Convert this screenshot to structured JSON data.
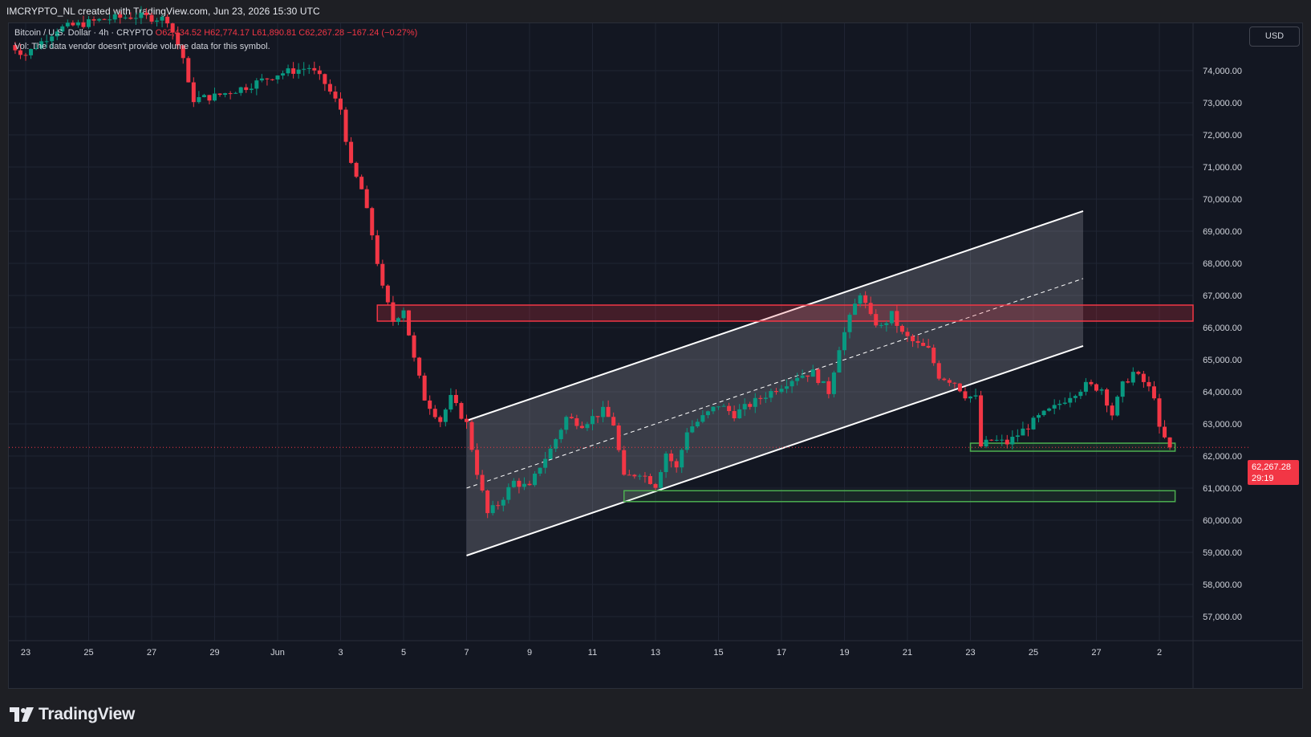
{
  "header": {
    "credit": "IMCRYPTO_NL created with TradingView.com, Jun 23, 2026 15:30 UTC"
  },
  "legend": {
    "symbol": "Bitcoin / U.S. Dollar · 4h · CRYPTO",
    "open": "O62,434.52",
    "high": "H62,774.17",
    "low": "L61,890.81",
    "close": "C62,267.28",
    "change": "−167.24 (−0.27%)",
    "vol_note": "Vol: The data vendor doesn't provide volume data for this symbol."
  },
  "currency_button": "USD",
  "last_price": {
    "value": "62,267.28",
    "countdown": "29:19",
    "price": 62267.28
  },
  "branding": {
    "logo_text": "TradingView"
  },
  "colors": {
    "up": "#089981",
    "down": "#f23645",
    "background": "#131722",
    "grid": "#1f2433",
    "zone_red": "#f23645",
    "zone_green": "#4caf50",
    "channel": "#ffffff"
  },
  "chart_data": {
    "type": "candlestick",
    "title": "Bitcoin / U.S. Dollar · 4h · CRYPTO",
    "x_ticks": [
      "23",
      "25",
      "27",
      "29",
      "Jun",
      "3",
      "5",
      "7",
      "9",
      "11",
      "13",
      "15",
      "17",
      "19",
      "21",
      "23",
      "25",
      "27",
      "2"
    ],
    "y_ticks": [
      57000,
      58000,
      59000,
      60000,
      61000,
      62000,
      63000,
      64000,
      65000,
      66000,
      67000,
      68000,
      69000,
      70000,
      71000,
      72000,
      73000,
      74000
    ],
    "y_tick_labels": [
      "57,000.00",
      "58,000.00",
      "59,000.00",
      "60,000.00",
      "61,000.00",
      "62,000.00",
      "63,000.00",
      "64,000.00",
      "65,000.00",
      "66,000.00",
      "67,000.00",
      "68,000.00",
      "69,000.00",
      "70,000.00",
      "71,000.00",
      "72,000.00",
      "73,000.00",
      "74,000.00"
    ],
    "ylim": [
      56400,
      75800
    ],
    "x_range_days": [
      "2026-05-22T12:00",
      "2026-06-28T12:00"
    ],
    "grid": true,
    "anchors": [
      [
        "2026-05-22T12:00",
        74800
      ],
      [
        "2026-05-23T00:00",
        74500
      ],
      [
        "2026-05-24T00:00",
        75300
      ],
      [
        "2026-05-25T12:00",
        75600
      ],
      [
        "2026-05-26T12:00",
        75700
      ],
      [
        "2026-05-27T12:00",
        75600
      ],
      [
        "2026-05-28T00:00",
        74400
      ],
      [
        "2026-05-28T06:00",
        73100
      ],
      [
        "2026-05-29T00:00",
        73200
      ],
      [
        "2026-05-30T00:00",
        73500
      ],
      [
        "2026-05-31T00:00",
        73900
      ],
      [
        "2026-06-01T00:00",
        74100
      ],
      [
        "2026-06-01T12:00",
        73600
      ],
      [
        "2026-06-02T00:00",
        72800
      ],
      [
        "2026-06-02T08:00",
        71000
      ],
      [
        "2026-06-02T16:00",
        70300
      ],
      [
        "2026-06-03T00:00",
        68900
      ],
      [
        "2026-06-03T08:00",
        67200
      ],
      [
        "2026-06-03T16:00",
        66200
      ],
      [
        "2026-06-04T00:00",
        66600
      ],
      [
        "2026-06-04T08:00",
        65000
      ],
      [
        "2026-06-04T16:00",
        63800
      ],
      [
        "2026-06-05T04:00",
        63100
      ],
      [
        "2026-06-05T12:00",
        63800
      ],
      [
        "2026-06-06T00:00",
        63000
      ],
      [
        "2026-06-06T08:00",
        61500
      ],
      [
        "2026-06-06T16:00",
        60200
      ],
      [
        "2026-06-07T00:00",
        60500
      ],
      [
        "2026-06-07T12:00",
        61200
      ],
      [
        "2026-06-08T00:00",
        61000
      ],
      [
        "2026-06-08T08:00",
        61700
      ],
      [
        "2026-06-08T16:00",
        62200
      ],
      [
        "2026-06-09T04:00",
        63200
      ],
      [
        "2026-06-09T16:00",
        63000
      ],
      [
        "2026-06-10T08:00",
        63400
      ],
      [
        "2026-06-10T16:00",
        63000
      ],
      [
        "2026-06-11T00:00",
        61300
      ],
      [
        "2026-06-11T12:00",
        61500
      ],
      [
        "2026-06-12T00:00",
        61100
      ],
      [
        "2026-06-12T08:00",
        62100
      ],
      [
        "2026-06-12T16:00",
        61600
      ],
      [
        "2026-06-13T00:00",
        62800
      ],
      [
        "2026-06-13T12:00",
        63200
      ],
      [
        "2026-06-14T00:00",
        63600
      ],
      [
        "2026-06-14T12:00",
        63300
      ],
      [
        "2026-06-15T00:00",
        63600
      ],
      [
        "2026-06-15T12:00",
        63900
      ],
      [
        "2026-06-16T00:00",
        64200
      ],
      [
        "2026-06-16T12:00",
        64500
      ],
      [
        "2026-06-17T00:00",
        64600
      ],
      [
        "2026-06-17T12:00",
        64000
      ],
      [
        "2026-06-17T20:00",
        65400
      ],
      [
        "2026-06-18T06:00",
        66500
      ],
      [
        "2026-06-18T12:00",
        67100
      ],
      [
        "2026-06-18T20:00",
        66300
      ],
      [
        "2026-06-19T04:00",
        66000
      ],
      [
        "2026-06-19T12:00",
        66400
      ],
      [
        "2026-06-19T20:00",
        65800
      ],
      [
        "2026-06-20T06:00",
        65500
      ],
      [
        "2026-06-20T16:00",
        65300
      ],
      [
        "2026-06-21T00:00",
        64500
      ],
      [
        "2026-06-21T12:00",
        64300
      ],
      [
        "2026-06-21T20:00",
        63900
      ],
      [
        "2026-06-22T04:00",
        63800
      ],
      [
        "2026-06-22T08:00",
        62300
      ],
      [
        "2026-06-22T16:00",
        62500
      ],
      [
        "2026-06-23T04:00",
        62400
      ],
      [
        "2026-06-23T16:00",
        62800
      ],
      [
        "2026-06-24T04:00",
        63200
      ],
      [
        "2026-06-24T16:00",
        63500
      ],
      [
        "2026-06-25T04:00",
        63900
      ],
      [
        "2026-06-25T16:00",
        64200
      ],
      [
        "2026-06-26T04:00",
        64100
      ],
      [
        "2026-06-26T12:00",
        63300
      ],
      [
        "2026-06-26T20:00",
        64200
      ],
      [
        "2026-06-27T04:00",
        64600
      ],
      [
        "2026-06-27T12:00",
        64300
      ],
      [
        "2026-06-27T20:00",
        63900
      ],
      [
        "2026-06-28T00:00",
        62800
      ],
      [
        "2026-06-28T08:00",
        62267
      ]
    ],
    "annotations": {
      "resistance_zone": {
        "price_low": 66200,
        "price_high": 66700,
        "from": "2026-06-03T04:00",
        "to_edge": true
      },
      "support_zone_1": {
        "price_low": 62150,
        "price_high": 62400,
        "from": "2026-06-22T00:00",
        "to": "2026-06-28T12:00"
      },
      "support_zone_2": {
        "price_low": 60580,
        "price_high": 60920,
        "from": "2026-06-11T00:00",
        "to": "2026-06-28T12:00"
      },
      "channel": {
        "upper": [
          [
            "2026-06-06T00:00",
            63100
          ],
          [
            "2026-06-30T00:00",
            71100
          ]
        ],
        "mid": [
          [
            "2026-06-06T00:00",
            61000
          ],
          [
            "2026-06-30T00:00",
            69000
          ]
        ],
        "lower": [
          [
            "2026-06-06T00:00",
            58900
          ],
          [
            "2026-06-30T00:00",
            66900
          ]
        ]
      },
      "last_price_line": 62267.28
    }
  }
}
